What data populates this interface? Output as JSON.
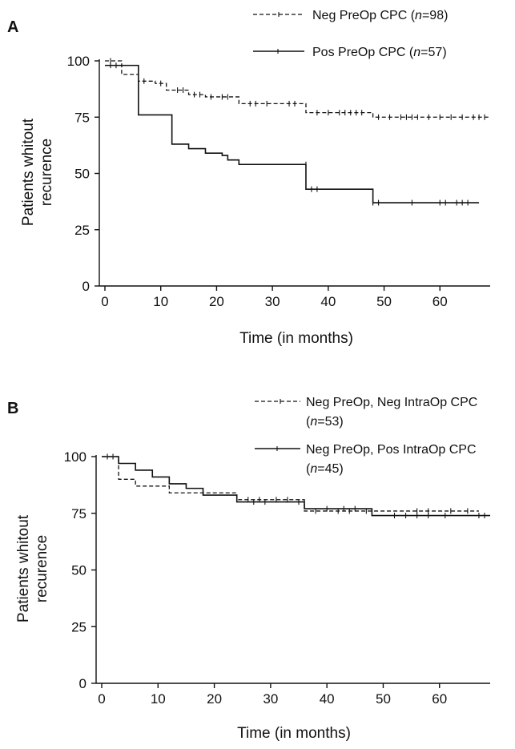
{
  "chart_data": [
    {
      "type": "line",
      "panel_label": "A",
      "xlabel": "Time (in months)",
      "ylabel": "Patients whitout recurence",
      "ylabel_lines": [
        "Patients whitout",
        "recurence"
      ],
      "xlim": [
        0,
        69
      ],
      "ylim": [
        0,
        100
      ],
      "xticks": [
        0,
        10,
        20,
        30,
        40,
        50,
        60
      ],
      "yticks": [
        0,
        25,
        50,
        75,
        100
      ],
      "legend_position": "top-right",
      "series": [
        {
          "name": "Neg PreOp CPC (n=98)",
          "legend_prefix": "Neg PreOp CPC (",
          "legend_italic": "n",
          "legend_suffix": "=98)",
          "style": "dashed",
          "steps": [
            [
              0,
              100
            ],
            [
              3,
              94
            ],
            [
              6,
              91
            ],
            [
              9,
              90
            ],
            [
              11,
              87
            ],
            [
              15,
              85
            ],
            [
              18,
              84
            ],
            [
              24,
              81
            ],
            [
              30,
              81
            ],
            [
              36,
              77
            ],
            [
              48,
              75
            ],
            [
              69,
              75
            ]
          ],
          "censored": [
            [
              1,
              100
            ],
            [
              7,
              91
            ],
            [
              10,
              90
            ],
            [
              13,
              87
            ],
            [
              14,
              87
            ],
            [
              16,
              85
            ],
            [
              17,
              85
            ],
            [
              19,
              84
            ],
            [
              21,
              84
            ],
            [
              22,
              84
            ],
            [
              26,
              81
            ],
            [
              27,
              81
            ],
            [
              29,
              81
            ],
            [
              33,
              81
            ],
            [
              34,
              81
            ],
            [
              38,
              77
            ],
            [
              40,
              77
            ],
            [
              42,
              77
            ],
            [
              43,
              77
            ],
            [
              44,
              77
            ],
            [
              45,
              77
            ],
            [
              46,
              77
            ],
            [
              49,
              75
            ],
            [
              51,
              75
            ],
            [
              53,
              75
            ],
            [
              54,
              75
            ],
            [
              55,
              75
            ],
            [
              56,
              75
            ],
            [
              58,
              75
            ],
            [
              60,
              75
            ],
            [
              62,
              75
            ],
            [
              64,
              75
            ],
            [
              66,
              75
            ],
            [
              67,
              75
            ],
            [
              68,
              75
            ]
          ]
        },
        {
          "name": "Pos PreOp CPC (n=57)",
          "legend_prefix": "Pos PreOp CPC (",
          "legend_italic": "n",
          "legend_suffix": "=57)",
          "style": "solid",
          "steps": [
            [
              0,
              98
            ],
            [
              6,
              76
            ],
            [
              12,
              63
            ],
            [
              15,
              61
            ],
            [
              18,
              59
            ],
            [
              21,
              58
            ],
            [
              22,
              56
            ],
            [
              24,
              54
            ],
            [
              36,
              43
            ],
            [
              48,
              37
            ],
            [
              67,
              37
            ]
          ],
          "censored": [
            [
              1,
              98
            ],
            [
              2,
              98
            ],
            [
              36,
              54
            ],
            [
              37,
              43
            ],
            [
              38,
              43
            ],
            [
              48,
              37
            ],
            [
              49,
              37
            ],
            [
              55,
              37
            ],
            [
              60,
              37
            ],
            [
              61,
              37
            ],
            [
              63,
              37
            ],
            [
              64,
              37
            ],
            [
              65,
              37
            ]
          ]
        }
      ]
    },
    {
      "type": "line",
      "panel_label": "B",
      "xlabel": "Time (in months)",
      "ylabel": "Patients whitout recurence",
      "ylabel_lines": [
        "Patients whitout",
        "recurence"
      ],
      "xlim": [
        0,
        69
      ],
      "ylim": [
        0,
        100
      ],
      "xticks": [
        0,
        10,
        20,
        30,
        40,
        50,
        60
      ],
      "yticks": [
        0,
        25,
        50,
        75,
        100
      ],
      "legend_position": "top-right",
      "series": [
        {
          "name": "Neg PreOp, Neg IntraOp CPC (n=53)",
          "legend_line1": "Neg PreOp, Neg IntraOp CPC",
          "legend_prefix": "(",
          "legend_italic": "n",
          "legend_suffix": "=53)",
          "style": "dashed",
          "steps": [
            [
              0,
              100
            ],
            [
              3,
              90
            ],
            [
              6,
              87
            ],
            [
              12,
              84
            ],
            [
              18,
              84
            ],
            [
              24,
              81
            ],
            [
              36,
              76
            ],
            [
              48,
              76
            ],
            [
              67,
              76
            ]
          ],
          "censored": [
            [
              26,
              81
            ],
            [
              28,
              81
            ],
            [
              31,
              81
            ],
            [
              33,
              81
            ],
            [
              38,
              76
            ],
            [
              42,
              76
            ],
            [
              44,
              76
            ],
            [
              47,
              76
            ],
            [
              56,
              76
            ],
            [
              58,
              76
            ],
            [
              62,
              76
            ],
            [
              65,
              76
            ]
          ]
        },
        {
          "name": "Neg PreOp, Pos IntraOp CPC (n=45)",
          "legend_line1": "Neg PreOp, Pos IntraOp CPC",
          "legend_prefix": "(",
          "legend_italic": "n",
          "legend_suffix": "=45)",
          "style": "solid",
          "steps": [
            [
              0,
              100
            ],
            [
              3,
              97
            ],
            [
              6,
              94
            ],
            [
              9,
              91
            ],
            [
              12,
              88
            ],
            [
              15,
              86
            ],
            [
              18,
              83
            ],
            [
              24,
              80
            ],
            [
              36,
              77
            ],
            [
              48,
              74
            ],
            [
              69,
              74
            ]
          ],
          "censored": [
            [
              1,
              100
            ],
            [
              2,
              100
            ],
            [
              27,
              80
            ],
            [
              29,
              80
            ],
            [
              35,
              80
            ],
            [
              40,
              77
            ],
            [
              43,
              77
            ],
            [
              45,
              77
            ],
            [
              52,
              74
            ],
            [
              54,
              74
            ],
            [
              56,
              74
            ],
            [
              58,
              74
            ],
            [
              61,
              74
            ],
            [
              67,
              74
            ],
            [
              68,
              74
            ]
          ]
        }
      ]
    }
  ]
}
